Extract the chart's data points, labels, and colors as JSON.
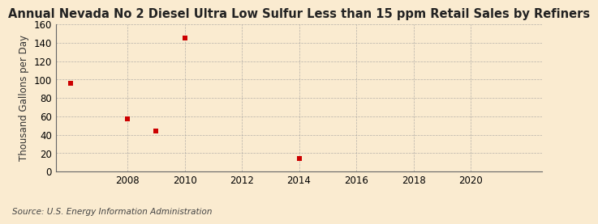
{
  "title": "Annual Nevada No 2 Diesel Ultra Low Sulfur Less than 15 ppm Retail Sales by Refiners",
  "ylabel": "Thousand Gallons per Day",
  "source": "Source: U.S. Energy Information Administration",
  "x_data": [
    2006,
    2008,
    2009,
    2010,
    2014
  ],
  "y_data": [
    96,
    57,
    44,
    145,
    14
  ],
  "marker_color": "#cc0000",
  "marker": "s",
  "marker_size": 4,
  "xlim": [
    2005.5,
    2022.5
  ],
  "ylim": [
    0,
    160
  ],
  "xticks": [
    2008,
    2010,
    2012,
    2014,
    2016,
    2018,
    2020
  ],
  "yticks": [
    0,
    20,
    40,
    60,
    80,
    100,
    120,
    140,
    160
  ],
  "background_color": "#faebd0",
  "grid_color": "#999999",
  "title_fontsize": 10.5,
  "label_fontsize": 8.5,
  "tick_fontsize": 8.5,
  "source_fontsize": 7.5
}
